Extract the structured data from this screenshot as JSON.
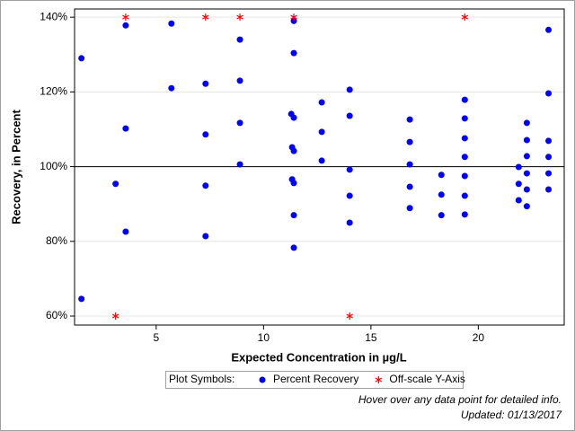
{
  "chart_data": {
    "type": "scatter",
    "x_label": "Expected Concentration in µg/L",
    "y_label": "Recovery, in Percent",
    "xlim": [
      1.2,
      24.0
    ],
    "ylim": [
      57.6,
      142.2
    ],
    "xticks": [
      5,
      10,
      15,
      20
    ],
    "yticks": [
      {
        "value": 60,
        "label": "60%"
      },
      {
        "value": 80,
        "label": "80%"
      },
      {
        "value": 100,
        "label": "100%"
      },
      {
        "value": 120,
        "label": "120%"
      },
      {
        "value": 140,
        "label": "140%"
      }
    ],
    "grid": true,
    "reference_line": 100,
    "legend_title": "Plot Symbols:",
    "series": [
      {
        "name": "Percent Recovery",
        "color": "#0000ff",
        "marker": "circle",
        "x": [
          1.52,
          1.52,
          3.11,
          3.58,
          3.58,
          3.58,
          5.71,
          5.71,
          7.3,
          7.3,
          7.3,
          7.3,
          8.9,
          8.9,
          8.9,
          8.9,
          11.29,
          11.41,
          11.41,
          11.41,
          11.33,
          11.41,
          11.33,
          11.41,
          11.41,
          11.41,
          12.71,
          12.71,
          12.71,
          14.01,
          14.01,
          14.01,
          14.01,
          14.01,
          16.81,
          16.81,
          16.81,
          16.81,
          16.81,
          18.28,
          18.28,
          18.28,
          19.37,
          19.37,
          19.37,
          19.37,
          19.37,
          19.37,
          19.37,
          21.88,
          21.88,
          21.88,
          22.26,
          22.26,
          22.26,
          22.26,
          22.26,
          22.26,
          23.27,
          23.27,
          23.27,
          23.27,
          23.27,
          23.27
        ],
        "values": [
          129.0,
          64.6,
          95.4,
          137.8,
          110.2,
          82.6,
          138.3,
          121.0,
          122.2,
          108.6,
          94.9,
          81.4,
          134.0,
          123.0,
          111.7,
          100.6,
          114.1,
          113.1,
          139.0,
          130.4,
          105.2,
          104.2,
          96.6,
          95.6,
          87.0,
          78.3,
          117.2,
          109.3,
          101.6,
          120.6,
          113.6,
          99.2,
          92.2,
          85.0,
          112.6,
          106.6,
          100.6,
          94.6,
          88.9,
          97.8,
          92.5,
          87.0,
          117.9,
          112.9,
          107.6,
          102.6,
          97.5,
          92.2,
          87.2,
          99.9,
          95.4,
          91.0,
          111.7,
          107.1,
          102.8,
          98.2,
          93.9,
          89.4,
          136.6,
          119.6,
          106.9,
          102.6,
          98.2,
          93.9
        ]
      },
      {
        "name": "Off-scale Y-Axis",
        "color": "#ff0000",
        "marker": "star",
        "x": [
          3.58,
          7.3,
          8.9,
          11.41,
          19.37,
          3.11,
          14.01
        ],
        "values": [
          140,
          140,
          140,
          140,
          140,
          60,
          60
        ]
      }
    ],
    "footnotes": [
      "Hover over any data point for detailed info.",
      "Updated: 01/13/2017"
    ]
  }
}
